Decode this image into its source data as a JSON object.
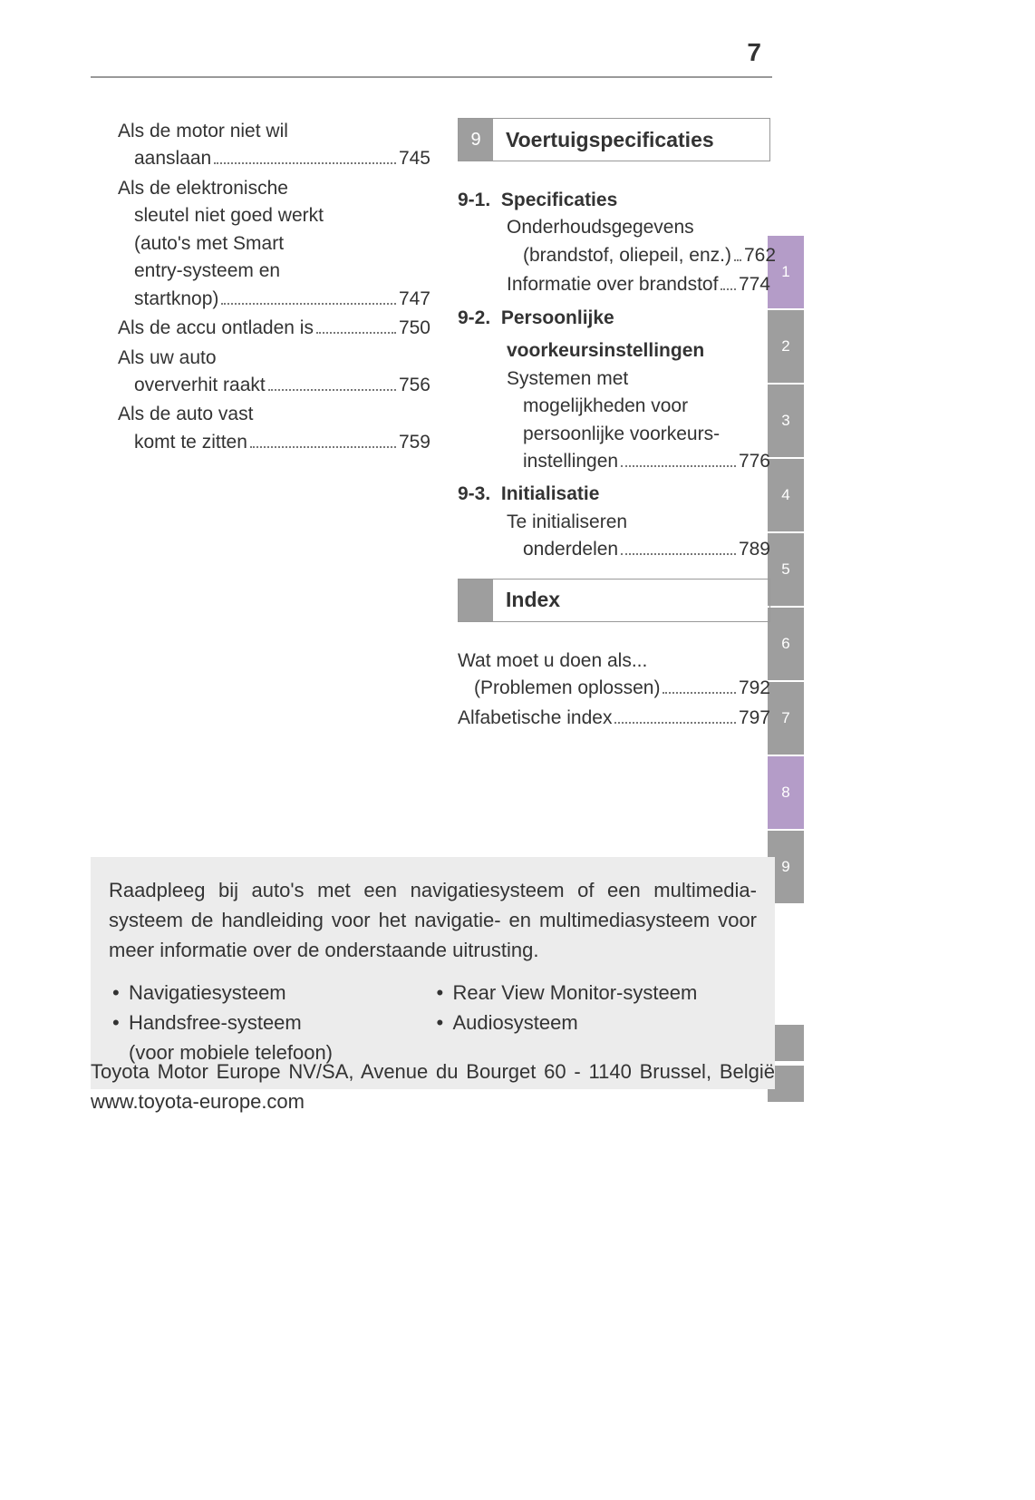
{
  "page_number": "7",
  "colors": {
    "gray": "#9e9e9e",
    "purple": "#b49cc8",
    "text": "#333333",
    "box_bg": "#ececec"
  },
  "typography": {
    "body_fontsize": 21,
    "heading_fontsize": 23,
    "pagenum_fontsize": 28
  },
  "side_tabs": [
    {
      "label": "1",
      "style": "purple"
    },
    {
      "label": "2",
      "style": "gray"
    },
    {
      "label": "3",
      "style": "gray"
    },
    {
      "label": "4",
      "style": "gray"
    },
    {
      "label": "5",
      "style": "gray"
    },
    {
      "label": "6",
      "style": "gray"
    },
    {
      "label": "7",
      "style": "gray"
    },
    {
      "label": "8",
      "style": "purple"
    },
    {
      "label": "9",
      "style": "gray"
    }
  ],
  "left_col": [
    {
      "lines": [
        "Als de motor niet wil",
        "aanslaan"
      ],
      "page": "745"
    },
    {
      "lines": [
        "Als de elektronische",
        "sleutel niet goed werkt",
        "(auto's met Smart",
        "entry-systeem en",
        "startknop)"
      ],
      "page": "747"
    },
    {
      "lines": [
        "Als de accu ontladen is"
      ],
      "page": "750"
    },
    {
      "lines": [
        "Als uw auto",
        "oververhit raakt"
      ],
      "page": "756"
    },
    {
      "lines": [
        "Als de auto vast",
        "komt te zitten"
      ],
      "page": "759"
    }
  ],
  "section9": {
    "num": "9",
    "title": "Voertuigspecificaties",
    "subs": [
      {
        "num": "9-1.",
        "title": "Specificaties",
        "items": [
          {
            "lines": [
              "Onderhoudsgegevens",
              "(brandstof, oliepeil, enz.)"
            ],
            "page": "762"
          },
          {
            "lines": [
              "Informatie over brandstof"
            ],
            "page": "774"
          }
        ]
      },
      {
        "num": "9-2.",
        "title_lines": [
          "Persoonlijke",
          "voorkeursinstellingen"
        ],
        "items": [
          {
            "lines": [
              "Systemen met",
              "mogelijkheden voor",
              "persoonlijke voorkeurs-",
              "instellingen"
            ],
            "page": "776"
          }
        ]
      },
      {
        "num": "9-3.",
        "title": "Initialisatie",
        "items": [
          {
            "lines": [
              "Te initialiseren",
              "onderdelen"
            ],
            "page": "789"
          }
        ]
      }
    ]
  },
  "index_section": {
    "title": "Index",
    "items": [
      {
        "lines": [
          "Wat moet u doen als...",
          "(Problemen oplossen)"
        ],
        "page": "792"
      },
      {
        "lines": [
          "Alfabetische index"
        ],
        "page": "797"
      }
    ]
  },
  "bottom_box": {
    "paragraph": "Raadpleeg bij auto's met een navigatiesysteem of een multimedia­systeem de handleiding voor het navigatie- en multimediasysteem voor meer informatie over de onderstaande uitrusting.",
    "left_bullets": [
      "Navigatiesysteem",
      "Handsfree-systeem"
    ],
    "left_sub": "(voor mobiele telefoon)",
    "right_bullets": [
      "Rear View Monitor-systeem",
      "Audiosysteem"
    ]
  },
  "footer": "Toyota Motor Europe NV/SA, Avenue du Bourget 60 - 1140 Brussel, België www.toyota-europe.com"
}
